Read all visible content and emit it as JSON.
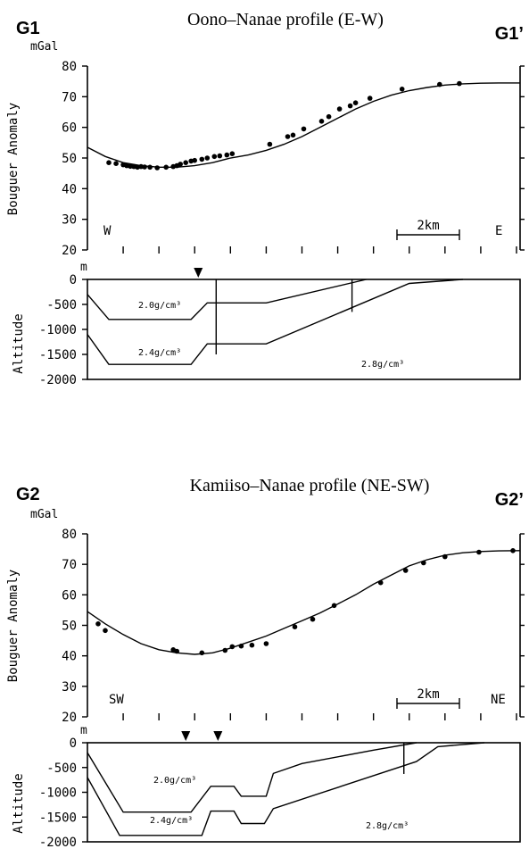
{
  "chart_data": [
    {
      "type": "line",
      "id": "g1",
      "title": "Oono–Nanae profile (E-W)",
      "profile_start": "G1",
      "profile_end": "G1’",
      "gravity": {
        "unit": "mGal",
        "ylabel": "Bouguer Anomaly",
        "ylim": [
          20,
          80
        ],
        "yticks": [
          "80",
          "70",
          "60",
          "50",
          "40",
          "30",
          "20"
        ],
        "dir_left": "W",
        "dir_right": "E",
        "scale_bar": "2km",
        "xlim": [
          0,
          12.1
        ],
        "model_curve": [
          [
            0,
            53.5
          ],
          [
            0.5,
            50.5
          ],
          [
            1,
            48.5
          ],
          [
            1.5,
            47.5
          ],
          [
            2,
            47
          ],
          [
            2.5,
            47
          ],
          [
            3,
            47.5
          ],
          [
            3.5,
            48.5
          ],
          [
            4,
            50
          ],
          [
            4.5,
            51
          ],
          [
            5,
            52.5
          ],
          [
            5.5,
            54.5
          ],
          [
            6,
            57
          ],
          [
            6.5,
            60
          ],
          [
            7,
            63
          ],
          [
            7.5,
            66
          ],
          [
            8,
            68.5
          ],
          [
            8.5,
            70.5
          ],
          [
            9,
            72
          ],
          [
            9.5,
            73
          ],
          [
            10,
            73.8
          ],
          [
            10.5,
            74.2
          ],
          [
            11,
            74.4
          ],
          [
            11.5,
            74.5
          ],
          [
            12.1,
            74.5
          ]
        ],
        "observations": [
          [
            0.6,
            48.5
          ],
          [
            0.8,
            48.2
          ],
          [
            1.0,
            47.8
          ],
          [
            1.1,
            47.5
          ],
          [
            1.2,
            47.3
          ],
          [
            1.3,
            47.2
          ],
          [
            1.4,
            47.0
          ],
          [
            1.5,
            47.2
          ],
          [
            1.6,
            47.1
          ],
          [
            1.75,
            47.0
          ],
          [
            1.95,
            46.8
          ],
          [
            2.2,
            47.0
          ],
          [
            2.4,
            47.2
          ],
          [
            2.5,
            47.5
          ],
          [
            2.6,
            48.0
          ],
          [
            2.75,
            48.5
          ],
          [
            2.9,
            49.0
          ],
          [
            3.0,
            49.2
          ],
          [
            3.2,
            49.6
          ],
          [
            3.35,
            50.0
          ],
          [
            3.55,
            50.5
          ],
          [
            3.7,
            50.7
          ],
          [
            3.9,
            51.0
          ],
          [
            4.05,
            51.4
          ],
          [
            5.1,
            54.5
          ],
          [
            5.6,
            57.0
          ],
          [
            5.75,
            57.5
          ],
          [
            6.05,
            59.5
          ],
          [
            6.55,
            62.0
          ],
          [
            6.75,
            63.5
          ],
          [
            7.05,
            66.0
          ],
          [
            7.35,
            67.0
          ],
          [
            7.5,
            68.0
          ],
          [
            7.9,
            69.5
          ],
          [
            8.8,
            72.5
          ],
          [
            9.85,
            74.0
          ],
          [
            10.4,
            74.3
          ]
        ]
      },
      "density_model": {
        "unit": "m",
        "ylabel": "Altitude",
        "ylim": [
          -2000,
          0
        ],
        "yticks": [
          "0",
          "-500",
          "-1000",
          "-1500",
          "-2000"
        ],
        "station_markers_x": [
          3.1
        ],
        "layer_labels": [
          "2.0g/cm³",
          "2.4g/cm³",
          "2.8g/cm³"
        ],
        "boundary_upper": [
          [
            0,
            -300
          ],
          [
            0.6,
            -800
          ],
          [
            2.9,
            -800
          ],
          [
            3.35,
            -470
          ],
          [
            5.0,
            -470
          ],
          [
            7.8,
            0
          ]
        ],
        "boundary_lower": [
          [
            0,
            -1100
          ],
          [
            0.6,
            -1700
          ],
          [
            2.9,
            -1700
          ],
          [
            3.35,
            -1290
          ],
          [
            5.0,
            -1290
          ],
          [
            9.0,
            -80
          ],
          [
            10.5,
            0
          ]
        ],
        "faults": [
          [
            [
              3.6,
              0
            ],
            [
              3.6,
              -1500
            ]
          ],
          [
            [
              7.4,
              0
            ],
            [
              7.4,
              -650
            ]
          ]
        ]
      }
    },
    {
      "type": "line",
      "id": "g2",
      "title": "Kamiiso–Nanae profile (NE-SW)",
      "profile_start": "G2",
      "profile_end": "G2’",
      "gravity": {
        "unit": "mGal",
        "ylabel": "Bouguer Anomaly",
        "ylim": [
          20,
          80
        ],
        "yticks": [
          "80",
          "70",
          "60",
          "50",
          "40",
          "30",
          "20"
        ],
        "dir_left": "SW",
        "dir_right": "NE",
        "scale_bar": "2km",
        "xlim": [
          0,
          12.1
        ],
        "model_curve": [
          [
            0,
            54.5
          ],
          [
            0.5,
            50.5
          ],
          [
            1,
            47
          ],
          [
            1.5,
            44
          ],
          [
            2,
            42
          ],
          [
            2.5,
            41
          ],
          [
            3,
            40.5
          ],
          [
            3.5,
            41
          ],
          [
            4,
            42.5
          ],
          [
            4.5,
            44.5
          ],
          [
            5,
            46.5
          ],
          [
            5.5,
            49
          ],
          [
            6,
            51.5
          ],
          [
            6.5,
            54
          ],
          [
            7,
            57
          ],
          [
            7.5,
            60
          ],
          [
            8,
            63.5
          ],
          [
            8.5,
            66.5
          ],
          [
            9,
            69.5
          ],
          [
            9.5,
            71.5
          ],
          [
            10,
            73
          ],
          [
            10.5,
            73.8
          ],
          [
            11,
            74.2
          ],
          [
            11.5,
            74.4
          ],
          [
            12.1,
            74.5
          ]
        ],
        "observations": [
          [
            0.3,
            50.5
          ],
          [
            0.5,
            48.3
          ],
          [
            2.4,
            42.0
          ],
          [
            2.5,
            41.5
          ],
          [
            3.2,
            41.0
          ],
          [
            3.85,
            41.8
          ],
          [
            4.05,
            43.0
          ],
          [
            4.3,
            43.2
          ],
          [
            4.6,
            43.5
          ],
          [
            5.0,
            44.0
          ],
          [
            5.8,
            49.5
          ],
          [
            6.3,
            52.0
          ],
          [
            6.9,
            56.5
          ],
          [
            8.2,
            64.0
          ],
          [
            8.9,
            68.0
          ],
          [
            9.4,
            70.5
          ],
          [
            10.0,
            72.5
          ],
          [
            10.95,
            74.0
          ],
          [
            11.9,
            74.5
          ]
        ]
      },
      "density_model": {
        "unit": "m",
        "ylabel": "Altitude",
        "ylim": [
          -2000,
          0
        ],
        "yticks": [
          "0",
          "-500",
          "-1000",
          "-1500",
          "-2000"
        ],
        "station_markers_x": [
          2.75,
          3.65
        ],
        "layer_labels": [
          "2.0g/cm³",
          "2.4g/cm³",
          "2.8g/cm³"
        ],
        "boundary_upper": [
          [
            0,
            -200
          ],
          [
            1.0,
            -1400
          ],
          [
            2.9,
            -1400
          ],
          [
            3.45,
            -880
          ],
          [
            4.1,
            -880
          ],
          [
            4.3,
            -1080
          ],
          [
            5.0,
            -1080
          ],
          [
            5.2,
            -620
          ],
          [
            6.0,
            -420
          ],
          [
            8.0,
            -150
          ],
          [
            9.2,
            0
          ]
        ],
        "boundary_lower": [
          [
            0,
            -700
          ],
          [
            0.9,
            -1870
          ],
          [
            3.2,
            -1870
          ],
          [
            3.45,
            -1380
          ],
          [
            4.1,
            -1380
          ],
          [
            4.3,
            -1630
          ],
          [
            4.95,
            -1630
          ],
          [
            5.2,
            -1330
          ],
          [
            9.2,
            -380
          ],
          [
            9.8,
            -80
          ],
          [
            11.1,
            0
          ]
        ],
        "faults": [
          [
            [
              8.85,
              0
            ],
            [
              8.85,
              -630
            ]
          ]
        ]
      }
    }
  ]
}
